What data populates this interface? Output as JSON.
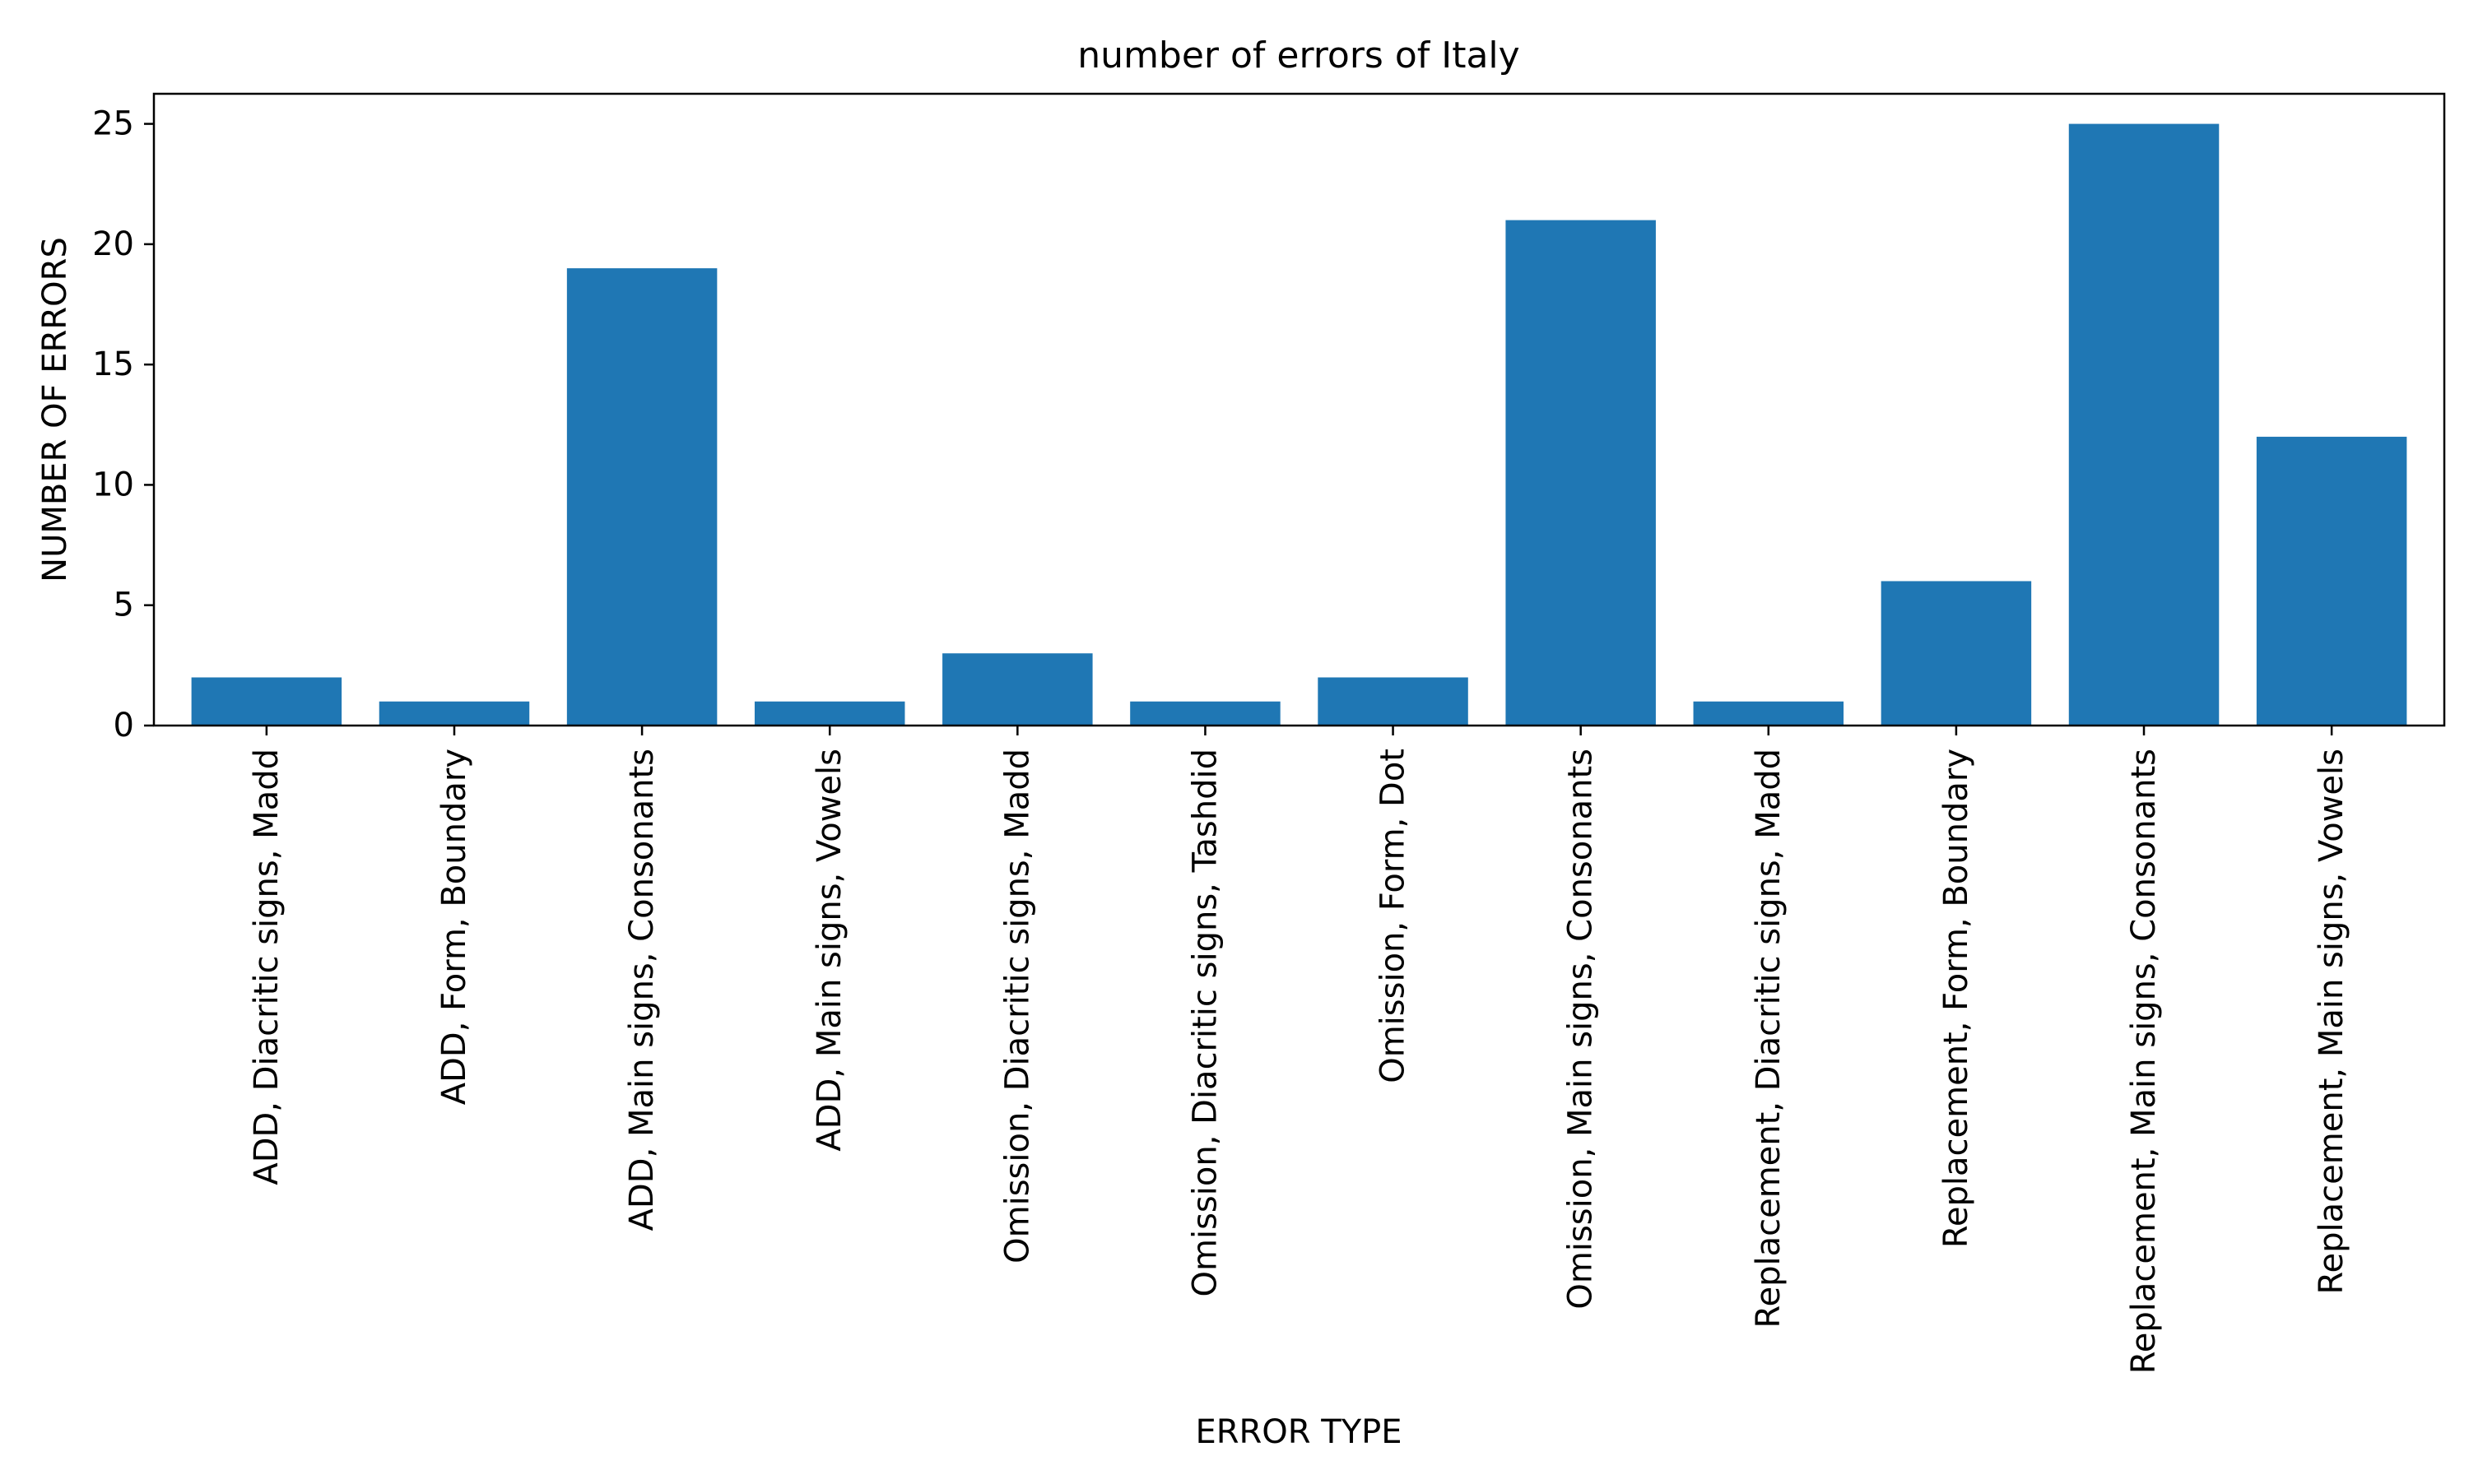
{
  "chart_data": {
    "type": "bar",
    "title": "number of errors of Italy",
    "xlabel": "ERROR TYPE",
    "ylabel": "NUMBER OF ERRORS",
    "categories": [
      "ADD, Diacritic signs, Madd",
      "ADD, Form, Boundary",
      "ADD, Main signs, Consonants",
      "ADD, Main signs, Vowels",
      "Omission, Diacritic signs, Madd",
      "Omission, Diacritic signs, Tashdid",
      "Omission, Form, Dot",
      "Omission, Main signs, Consonants",
      "Replacement, Diacritic signs, Madd",
      "Replacement, Form, Boundary",
      "Replacement, Main signs, Consonants",
      "Replacement, Main signs, Vowels"
    ],
    "values": [
      2,
      1,
      19,
      1,
      3,
      1,
      2,
      21,
      1,
      6,
      25,
      12
    ],
    "ylim": [
      0,
      26.25
    ],
    "yticks": [
      0,
      5,
      10,
      15,
      20,
      25
    ],
    "grid": false,
    "legend": "none",
    "colors": {
      "bar": "#1f77b4",
      "axis": "#000000"
    }
  }
}
